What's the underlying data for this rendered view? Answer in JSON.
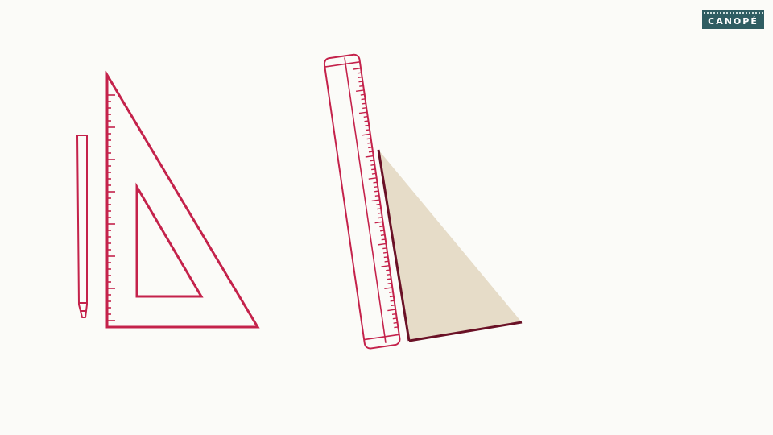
{
  "logo": {
    "text": "CANOPÉ"
  },
  "colors": {
    "background": "#fbfbf8",
    "outline": "#c4224b",
    "fill": "#e6dcc8",
    "edge": "#6a1126",
    "logo_bg": "#2f5d62"
  },
  "icons": [
    "pencil-icon",
    "set-square-icon",
    "ruler-icon",
    "triangle-shape"
  ]
}
